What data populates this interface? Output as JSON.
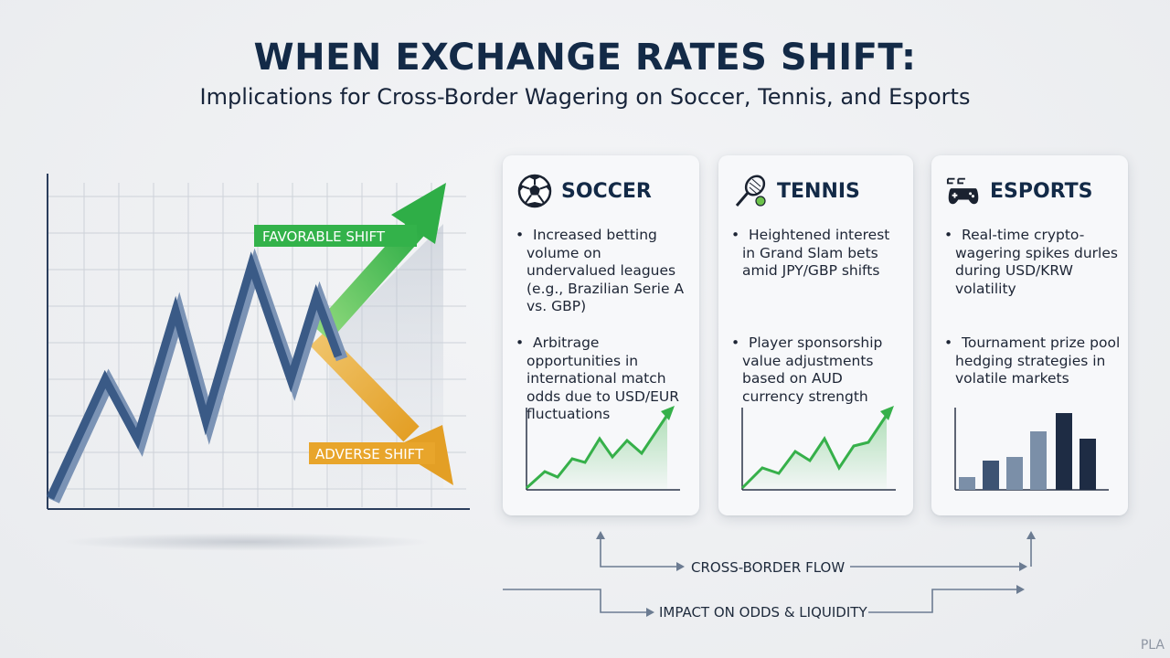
{
  "header": {
    "title": "WHEN EXCHANGE RATES SHIFT:",
    "subtitle": "Implications for Cross-Border Wagering on Soccer, Tennis, and Esports"
  },
  "main_chart": {
    "favorable_label": "FAVORABLE SHIFT",
    "adverse_label": "ADVERSE SHIFT",
    "colors": {
      "line": "#3a5a86",
      "favorable": "#33b24a",
      "adverse": "#e5a52b",
      "grid": "#c9ced6"
    }
  },
  "cards": [
    {
      "title": "SOCCER",
      "icon": "soccer-ball-icon",
      "bullets": [
        "Increased betting volume on undervalued leagues (e.g., Brazilian Serie A vs. GBP)",
        "Arbitrage opportunities in international match odds due to USD/EUR fluctuations"
      ]
    },
    {
      "title": "TENNIS",
      "icon": "tennis-racket-icon",
      "bullets": [
        "Heightened interest in Grand Slam bets amid JPY/GBP shifts",
        "Player sponsorship value adjustments based on AUD currency strength"
      ]
    },
    {
      "title": "ESPORTS",
      "icon": "game-controller-icon",
      "bullets": [
        "Real-time crypto-wagering spikes durles during USD/KRW volatility",
        "Tournament prize pool hedging strategies in volatile markets"
      ]
    }
  ],
  "flows": {
    "cross_border": "CROSS-BORDER FLOW",
    "impact": "IMPACT ON ODDS & LIQUIDITY"
  },
  "watermark": "PLA"
}
